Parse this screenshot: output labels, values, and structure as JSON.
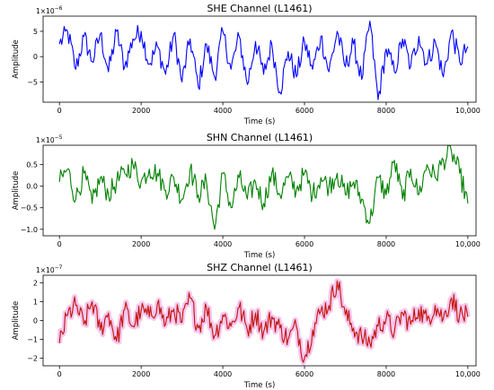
{
  "chart_data": [
    {
      "type": "line",
      "title": "SHE Channel (L1461)",
      "xlabel": "Time (s)",
      "ylabel": "Amplitude",
      "multiplier": "1e−6",
      "xlim": [
        -400,
        10200
      ],
      "ylim": [
        -9,
        8
      ],
      "xticks": [
        0,
        2000,
        4000,
        6000,
        8000,
        10000
      ],
      "xtick_labels": [
        "0",
        "2000",
        "4000",
        "6000",
        "8000",
        "10,000"
      ],
      "yticks": [
        -5,
        0,
        5
      ],
      "ytick_labels": [
        "−5",
        "0",
        "5"
      ],
      "grid": false,
      "series": [
        {
          "color": "#0000ff",
          "x": [
            0,
            200,
            400,
            600,
            800,
            1000,
            1200,
            1400,
            1600,
            1800,
            2000,
            2200,
            2400,
            2600,
            2800,
            3000,
            3200,
            3400,
            3600,
            3800,
            4000,
            4200,
            4400,
            4600,
            4800,
            5000,
            5200,
            5400,
            5600,
            5800,
            6000,
            6200,
            6400,
            6600,
            6800,
            7000,
            7200,
            7400,
            7600,
            7800,
            8000,
            8200,
            8400,
            8600,
            8800,
            9000,
            9200,
            9400,
            9600,
            9800,
            10000
          ],
          "y": [
            2.5,
            5,
            -2.5,
            4,
            -1,
            4.5,
            -3,
            5,
            -2,
            3.5,
            5,
            -1.5,
            2,
            -3.5,
            4.5,
            -5,
            3.5,
            -6,
            2.5,
            -4,
            5,
            -2.5,
            4,
            -5.5,
            3,
            -3.5,
            2.5,
            -7,
            1,
            -4,
            3,
            -2.5,
            4,
            -3,
            5,
            -2,
            2.5,
            -4.5,
            7,
            -8.5,
            1.5,
            -3,
            3.5,
            -2,
            4,
            -1.5,
            3,
            -4,
            5,
            -1,
            2
          ]
        }
      ]
    },
    {
      "type": "line",
      "title": "SHN Channel (L1461)",
      "xlabel": "Time (s)",
      "ylabel": "Amplitude",
      "multiplier": "1e−5",
      "xlim": [
        -400,
        10200
      ],
      "ylim": [
        -1.15,
        0.95
      ],
      "xticks": [
        0,
        2000,
        4000,
        6000,
        8000,
        10000
      ],
      "xtick_labels": [
        "0",
        "2000",
        "4000",
        "6000",
        "8000",
        "10,000"
      ],
      "yticks": [
        -1.0,
        -0.5,
        0.0,
        0.5
      ],
      "ytick_labels": [
        "−1.0",
        "−0.5",
        "0.0",
        "0.5"
      ],
      "grid": false,
      "series": [
        {
          "color": "#008000",
          "x": [
            0,
            200,
            400,
            600,
            800,
            1000,
            1200,
            1400,
            1600,
            1800,
            2000,
            2200,
            2400,
            2600,
            2800,
            3000,
            3200,
            3400,
            3600,
            3800,
            4000,
            4200,
            4400,
            4600,
            4800,
            5000,
            5200,
            5400,
            5600,
            5800,
            6000,
            6200,
            6400,
            6600,
            6800,
            7000,
            7200,
            7400,
            7600,
            7800,
            8000,
            8200,
            8400,
            8600,
            8800,
            9000,
            9200,
            9400,
            9600,
            9800,
            10000
          ],
          "y": [
            0.1,
            0.4,
            -0.3,
            0.3,
            -0.4,
            0.2,
            -0.2,
            0.1,
            0.3,
            0.5,
            0.1,
            0.4,
            0.3,
            -0.1,
            0.2,
            -0.3,
            0.4,
            -0.2,
            0.1,
            -1.0,
            0.3,
            -0.5,
            0.2,
            -0.3,
            0.1,
            -0.4,
            0.3,
            -0.2,
            0.2,
            -0.1,
            0.3,
            -0.2,
            0.2,
            0.0,
            0.3,
            -0.2,
            0.1,
            -0.3,
            -0.85,
            0.2,
            -0.2,
            0.6,
            -0.3,
            0.4,
            -0.2,
            0.5,
            0.2,
            0.6,
            0.8,
            0.3,
            -0.4
          ]
        }
      ]
    },
    {
      "type": "line",
      "title": "SHZ Channel (L1461)",
      "xlabel": "Time (s)",
      "ylabel": "Amplitude",
      "multiplier": "1e−7",
      "xlim": [
        -400,
        10200
      ],
      "ylim": [
        -2.4,
        2.4
      ],
      "xticks": [
        0,
        2000,
        4000,
        6000,
        8000,
        10000
      ],
      "xtick_labels": [
        "0",
        "2000",
        "4000",
        "6000",
        "8000",
        "10,000"
      ],
      "yticks": [
        -2,
        -1,
        0,
        1,
        2
      ],
      "ytick_labels": [
        "−2",
        "−1",
        "0",
        "1",
        "2"
      ],
      "grid": false,
      "series": [
        {
          "color": "#dd0000",
          "band_color": "#f5c6f0",
          "x": [
            0,
            200,
            400,
            600,
            800,
            1000,
            1200,
            1400,
            1600,
            1800,
            2000,
            2200,
            2400,
            2600,
            2800,
            3000,
            3200,
            3400,
            3600,
            3800,
            4000,
            4200,
            4400,
            4600,
            4800,
            5000,
            5200,
            5400,
            5600,
            5800,
            6000,
            6200,
            6400,
            6600,
            6800,
            7000,
            7200,
            7400,
            7600,
            7800,
            8000,
            8200,
            8400,
            8600,
            8800,
            9000,
            9200,
            9400,
            9600,
            9800,
            10000
          ],
          "y": [
            -1.2,
            0.3,
            0.8,
            -0.2,
            1.0,
            -0.5,
            0.4,
            -1.1,
            0.6,
            -0.3,
            0.5,
            0.2,
            0.9,
            -0.2,
            0.6,
            -0.1,
            1.2,
            -0.4,
            0.7,
            -0.8,
            0.3,
            -0.3,
            0.7,
            -0.5,
            0.4,
            -0.6,
            0.2,
            -0.4,
            -1.0,
            -0.3,
            -2.0,
            -0.5,
            0.5,
            0.8,
            2.1,
            0.3,
            -0.4,
            -0.9,
            -1.2,
            -0.3,
            0.1,
            -0.6,
            0.4,
            -0.2,
            0.6,
            0.0,
            0.8,
            0.1,
            1.2,
            0.3,
            0.2
          ]
        }
      ]
    }
  ]
}
